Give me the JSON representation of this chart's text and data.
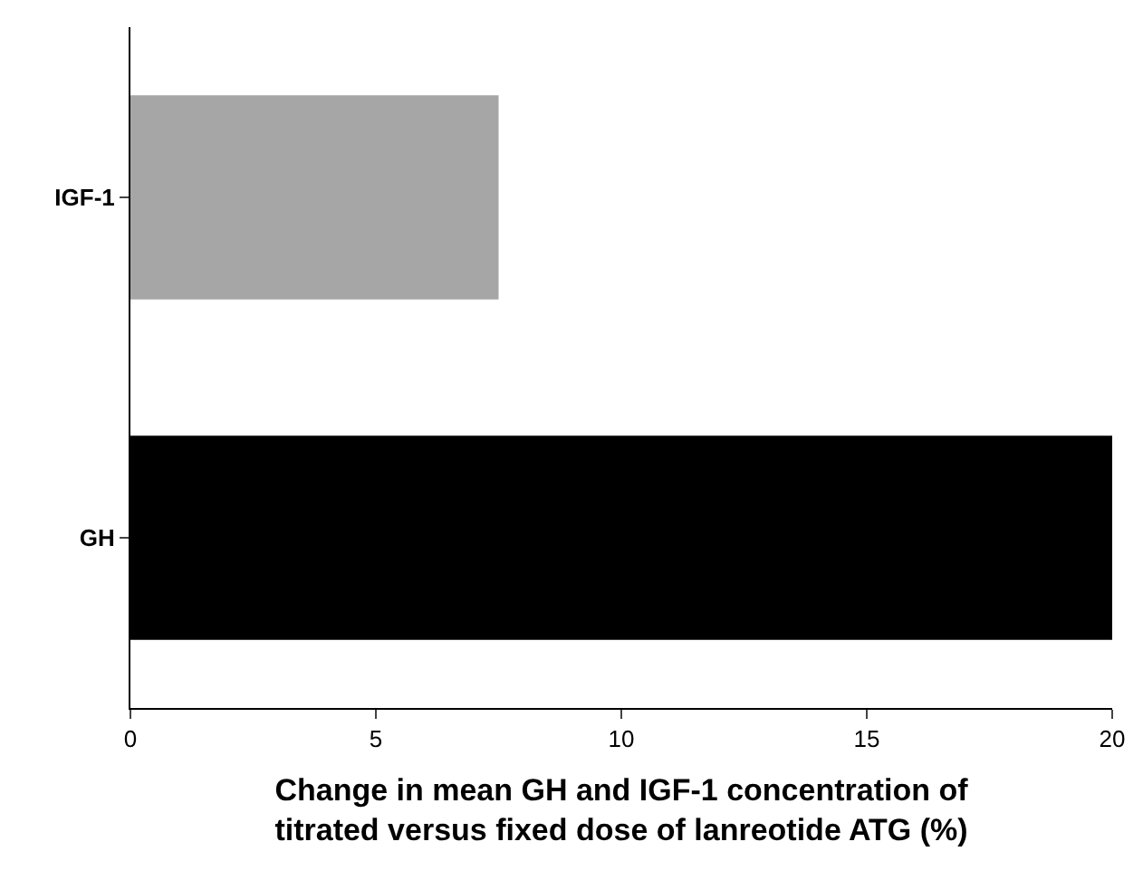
{
  "chart_data": {
    "type": "bar",
    "orientation": "horizontal",
    "categories": [
      "IGF-1",
      "GH"
    ],
    "values": [
      7.5,
      20
    ],
    "colors": [
      "#a6a6a6",
      "#000000"
    ],
    "xlabel": "Change in mean GH and IGF-1 concentration of\ntitrated versus fixed dose of lanreotide ATG (%)",
    "xlim": [
      0,
      20
    ],
    "xticks": [
      0,
      5,
      10,
      15,
      20
    ]
  }
}
